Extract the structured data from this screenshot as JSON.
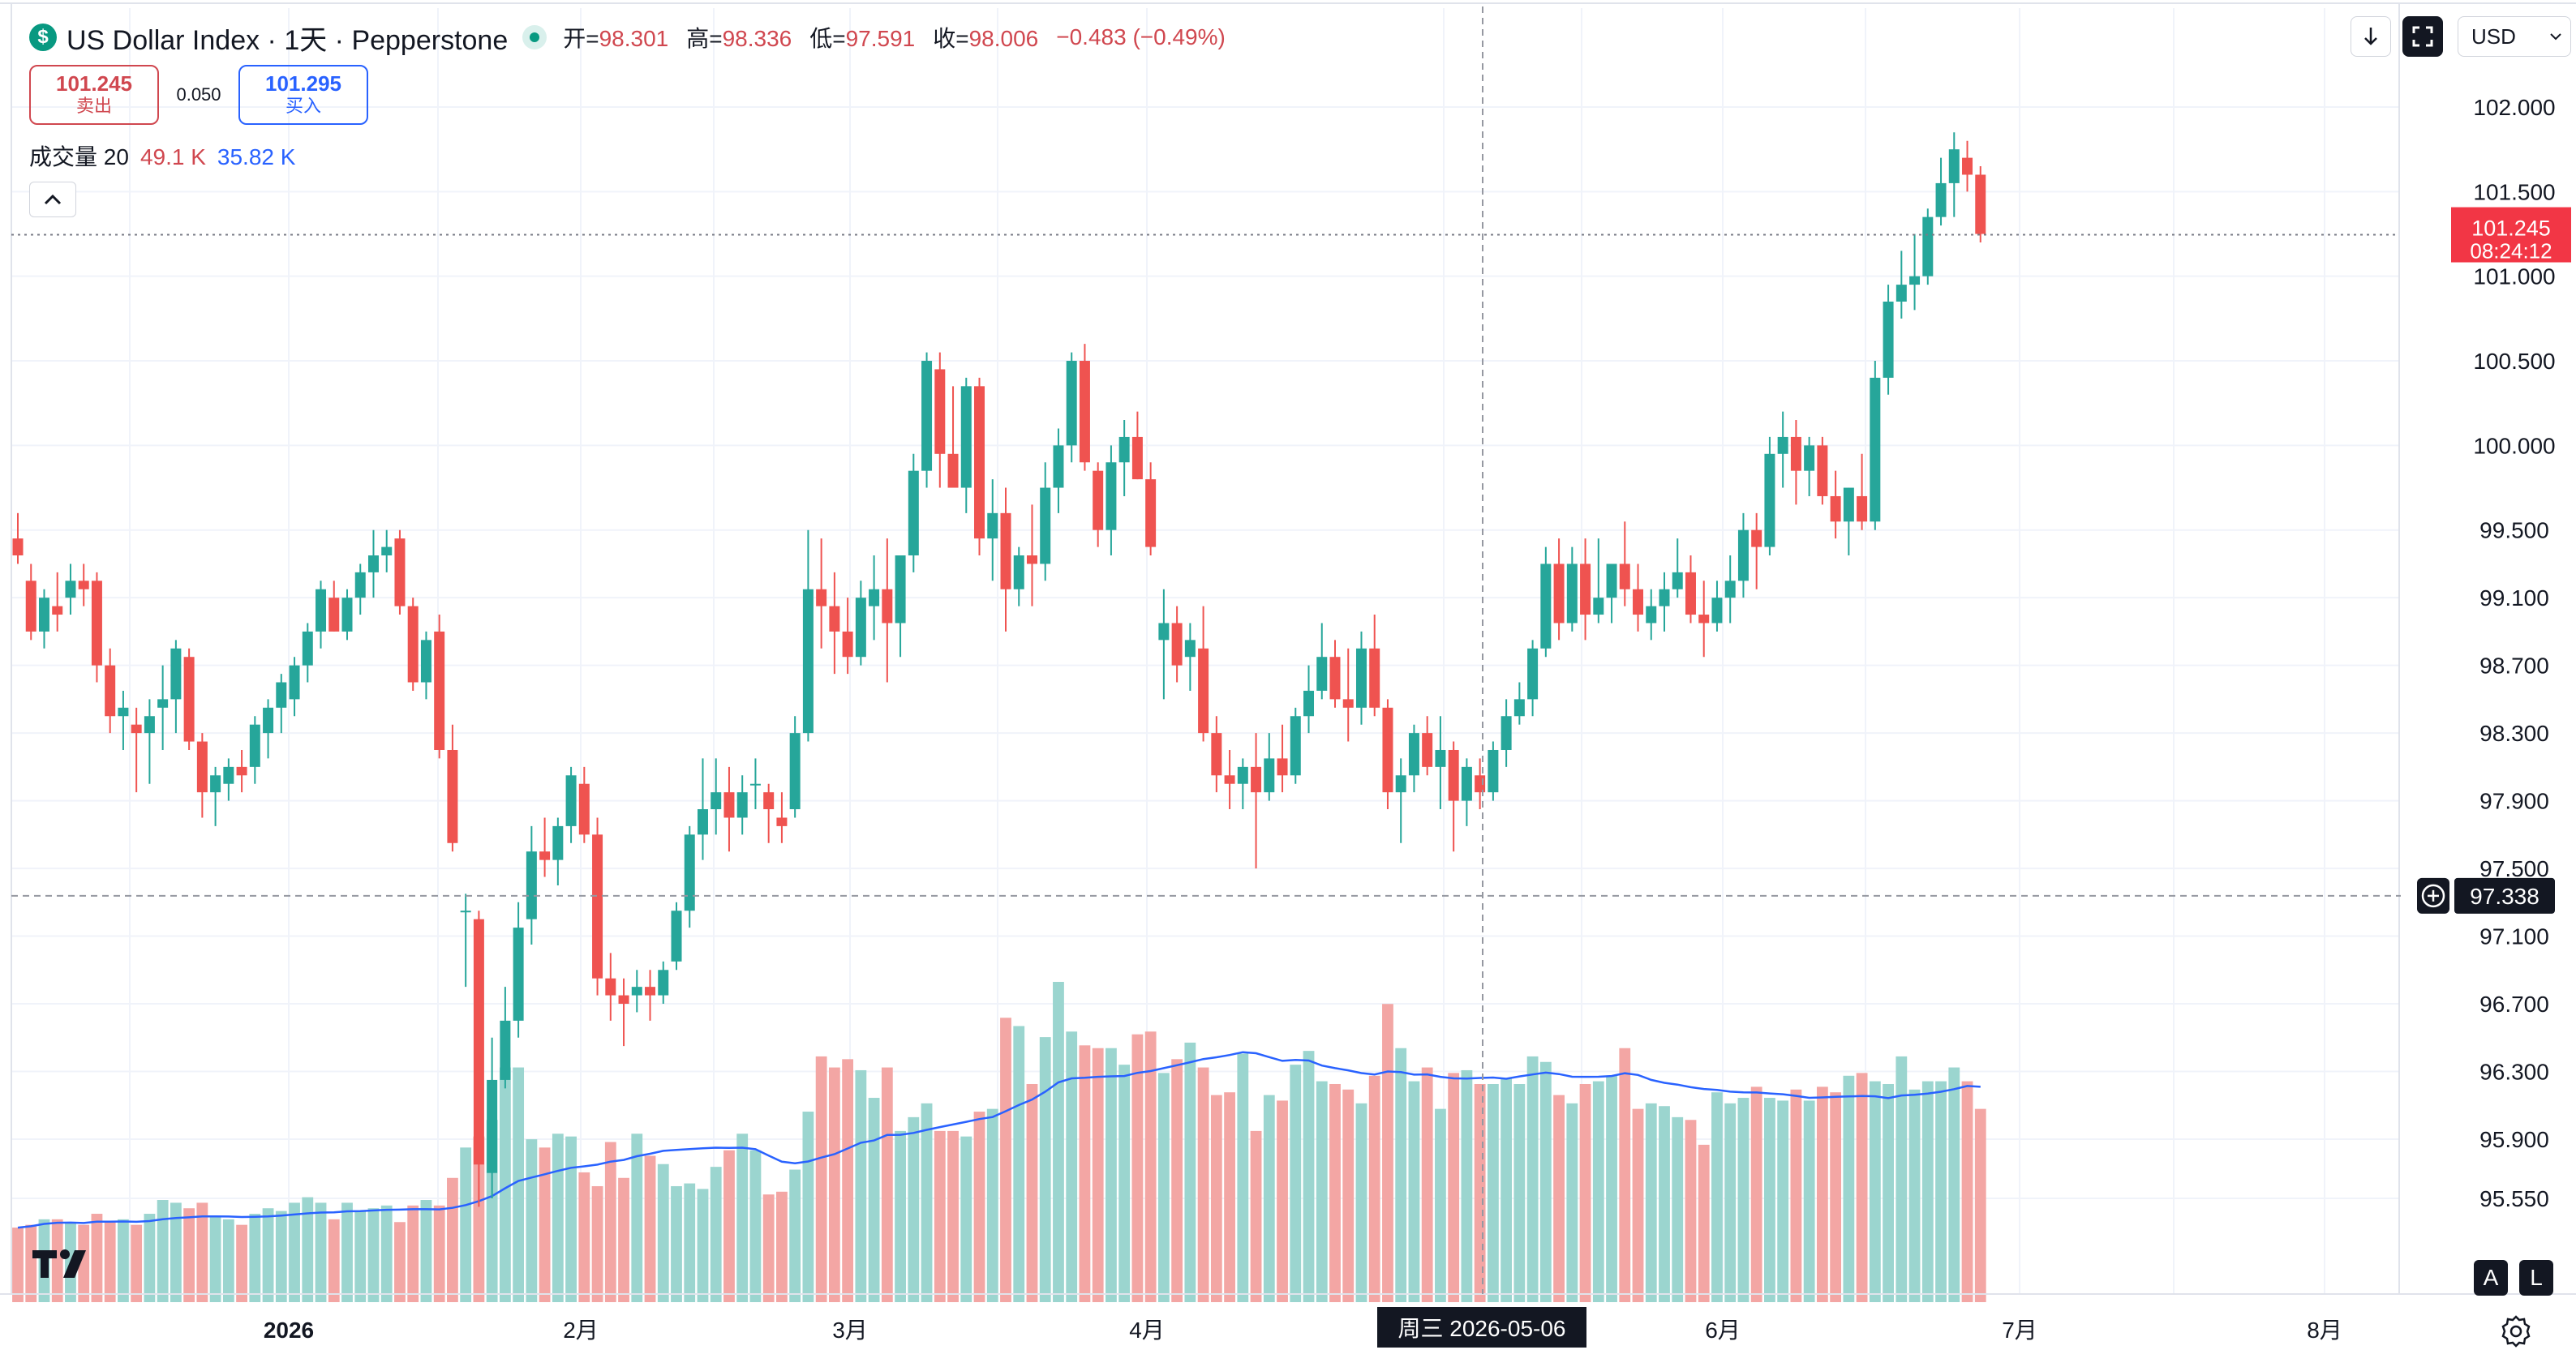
{
  "header": {
    "symbol_title": "US Dollar Index · 1天 · Pepperstone",
    "symbol_icon": "dollar-sign-icon",
    "status_dot": "market-status-dot-icon",
    "ohlc": {
      "open_label": "开=",
      "open": "98.301",
      "high_label": "高=",
      "high": "98.336",
      "low_label": "低=",
      "low": "97.591",
      "close_label": "收=",
      "close": "98.006",
      "change": "−0.483 (−0.49%)"
    }
  },
  "trade": {
    "sell_price": "101.245",
    "sell_label": "卖出",
    "spread": "0.050",
    "buy_price": "101.295",
    "buy_label": "买入"
  },
  "volume_legend": {
    "label": "成交量 20",
    "value1": "49.1 K",
    "value2": "35.82 K"
  },
  "toolbar": {
    "download_icon": "arrow-down-icon",
    "fullscreen_icon": "fullscreen-icon",
    "currency": "USD"
  },
  "crosshair": {
    "price": "97.338",
    "date": "周三 2026-05-06"
  },
  "current_price": {
    "price": "101.245",
    "countdown": "08:24:12"
  },
  "bottom_buttons": {
    "auto": "A",
    "log": "L"
  },
  "colors": {
    "up": "#26a69a",
    "down": "#ef5350",
    "up_vol": "#9bd5cf",
    "down_vol": "#f3a6a4",
    "ma": "#2962ff",
    "text": "#131722"
  },
  "chart_data": {
    "type": "candlestick",
    "symbol": "US Dollar Index",
    "interval": "1天",
    "y_axis_labels": [
      "102.000",
      "101.500",
      "101.000",
      "100.500",
      "100.000",
      "99.500",
      "99.100",
      "98.700",
      "98.300",
      "97.900",
      "97.500",
      "97.100",
      "96.700",
      "96.300",
      "95.900",
      "95.550"
    ],
    "ylim": [
      95.2,
      102.2
    ],
    "x_axis_labels": [
      "2026",
      "2月",
      "3月",
      "4月",
      "6月",
      "7月",
      "8月"
    ],
    "series": [
      {
        "name": "price",
        "ohlc": [
          [
            99.45,
            99.6,
            99.3,
            99.35
          ],
          [
            99.2,
            99.3,
            98.85,
            98.9
          ],
          [
            98.9,
            99.15,
            98.8,
            99.1
          ],
          [
            99.05,
            99.25,
            98.9,
            99.0
          ],
          [
            99.1,
            99.3,
            99.0,
            99.2
          ],
          [
            99.2,
            99.3,
            99.05,
            99.15
          ],
          [
            99.2,
            99.25,
            98.6,
            98.7
          ],
          [
            98.7,
            98.8,
            98.3,
            98.4
          ],
          [
            98.4,
            98.55,
            98.2,
            98.45
          ],
          [
            98.35,
            98.45,
            97.95,
            98.3
          ],
          [
            98.3,
            98.5,
            98.0,
            98.4
          ],
          [
            98.45,
            98.7,
            98.2,
            98.5
          ],
          [
            98.5,
            98.85,
            98.3,
            98.8
          ],
          [
            98.75,
            98.8,
            98.2,
            98.25
          ],
          [
            98.25,
            98.3,
            97.8,
            97.95
          ],
          [
            97.95,
            98.1,
            97.75,
            98.05
          ],
          [
            98.0,
            98.15,
            97.9,
            98.1
          ],
          [
            98.1,
            98.2,
            97.95,
            98.05
          ],
          [
            98.1,
            98.4,
            98.0,
            98.35
          ],
          [
            98.3,
            98.5,
            98.15,
            98.45
          ],
          [
            98.45,
            98.65,
            98.3,
            98.6
          ],
          [
            98.5,
            98.75,
            98.4,
            98.7
          ],
          [
            98.7,
            98.95,
            98.6,
            98.9
          ],
          [
            98.9,
            99.2,
            98.8,
            99.15
          ],
          [
            99.1,
            99.2,
            98.9,
            98.9
          ],
          [
            98.9,
            99.15,
            98.85,
            99.1
          ],
          [
            99.1,
            99.3,
            99.0,
            99.25
          ],
          [
            99.25,
            99.5,
            99.1,
            99.35
          ],
          [
            99.35,
            99.5,
            99.25,
            99.4
          ],
          [
            99.45,
            99.5,
            99.0,
            99.05
          ],
          [
            99.05,
            99.1,
            98.55,
            98.6
          ],
          [
            98.6,
            98.9,
            98.5,
            98.85
          ],
          [
            98.9,
            99.0,
            98.15,
            98.2
          ],
          [
            98.2,
            98.35,
            97.6,
            97.65
          ],
          [
            97.25,
            97.35,
            96.8,
            97.25
          ],
          [
            97.2,
            97.25,
            95.5,
            95.75
          ],
          [
            95.7,
            96.5,
            95.55,
            96.25
          ],
          [
            96.25,
            96.8,
            96.2,
            96.6
          ],
          [
            96.6,
            97.3,
            96.5,
            97.15
          ],
          [
            97.2,
            97.75,
            97.05,
            97.6
          ],
          [
            97.6,
            97.8,
            97.45,
            97.55
          ],
          [
            97.55,
            97.8,
            97.4,
            97.75
          ],
          [
            97.75,
            98.1,
            97.65,
            98.05
          ],
          [
            98.0,
            98.1,
            97.65,
            97.7
          ],
          [
            97.7,
            97.8,
            96.75,
            96.85
          ],
          [
            96.85,
            97.0,
            96.6,
            96.75
          ],
          [
            96.75,
            96.85,
            96.45,
            96.7
          ],
          [
            96.75,
            96.9,
            96.65,
            96.8
          ],
          [
            96.8,
            96.9,
            96.6,
            96.75
          ],
          [
            96.75,
            96.95,
            96.7,
            96.9
          ],
          [
            96.95,
            97.3,
            96.9,
            97.25
          ],
          [
            97.25,
            97.75,
            97.15,
            97.7
          ],
          [
            97.7,
            98.15,
            97.55,
            97.85
          ],
          [
            97.85,
            98.15,
            97.7,
            97.95
          ],
          [
            97.95,
            98.1,
            97.6,
            97.8
          ],
          [
            97.8,
            98.05,
            97.7,
            97.95
          ],
          [
            98.0,
            98.15,
            97.85,
            98.0
          ],
          [
            97.95,
            98.0,
            97.65,
            97.85
          ],
          [
            97.8,
            97.95,
            97.65,
            97.75
          ],
          [
            97.85,
            98.4,
            97.8,
            98.3
          ],
          [
            98.3,
            99.5,
            98.25,
            99.15
          ],
          [
            99.15,
            99.45,
            98.8,
            99.05
          ],
          [
            99.05,
            99.25,
            98.65,
            98.9
          ],
          [
            98.9,
            99.1,
            98.65,
            98.75
          ],
          [
            98.75,
            99.2,
            98.7,
            99.1
          ],
          [
            99.05,
            99.35,
            98.85,
            99.15
          ],
          [
            99.15,
            99.45,
            98.6,
            98.95
          ],
          [
            98.95,
            99.35,
            98.75,
            99.35
          ],
          [
            99.35,
            99.95,
            99.25,
            99.85
          ],
          [
            99.85,
            100.55,
            99.75,
            100.5
          ],
          [
            100.45,
            100.55,
            99.75,
            99.95
          ],
          [
            99.95,
            100.35,
            99.75,
            99.75
          ],
          [
            99.75,
            100.4,
            99.6,
            100.35
          ],
          [
            100.35,
            100.4,
            99.35,
            99.45
          ],
          [
            99.45,
            99.8,
            99.2,
            99.6
          ],
          [
            99.6,
            99.75,
            98.9,
            99.15
          ],
          [
            99.15,
            99.4,
            99.05,
            99.35
          ],
          [
            99.35,
            99.65,
            99.05,
            99.3
          ],
          [
            99.3,
            99.9,
            99.2,
            99.75
          ],
          [
            99.75,
            100.1,
            99.6,
            100.0
          ],
          [
            100.0,
            100.55,
            99.9,
            100.5
          ],
          [
            100.5,
            100.6,
            99.85,
            99.9
          ],
          [
            99.85,
            99.9,
            99.4,
            99.5
          ],
          [
            99.5,
            100.0,
            99.35,
            99.9
          ],
          [
            99.9,
            100.15,
            99.7,
            100.05
          ],
          [
            100.05,
            100.2,
            99.8,
            99.8
          ],
          [
            99.8,
            99.9,
            99.35,
            99.4
          ],
          [
            98.85,
            99.15,
            98.5,
            98.95
          ],
          [
            98.95,
            99.05,
            98.6,
            98.7
          ],
          [
            98.75,
            98.95,
            98.55,
            98.85
          ],
          [
            98.8,
            99.05,
            98.25,
            98.3
          ],
          [
            98.3,
            98.4,
            97.95,
            98.05
          ],
          [
            98.05,
            98.2,
            97.85,
            98.0
          ],
          [
            98.0,
            98.15,
            97.85,
            98.1
          ],
          [
            98.1,
            98.3,
            97.5,
            97.95
          ],
          [
            97.95,
            98.3,
            97.9,
            98.15
          ],
          [
            98.15,
            98.35,
            97.95,
            98.05
          ],
          [
            98.05,
            98.45,
            98.0,
            98.4
          ],
          [
            98.4,
            98.7,
            98.3,
            98.55
          ],
          [
            98.55,
            98.95,
            98.5,
            98.75
          ],
          [
            98.75,
            98.85,
            98.45,
            98.5
          ],
          [
            98.5,
            98.8,
            98.25,
            98.45
          ],
          [
            98.45,
            98.9,
            98.35,
            98.8
          ],
          [
            98.8,
            99.0,
            98.4,
            98.45
          ],
          [
            98.45,
            98.5,
            97.85,
            97.95
          ],
          [
            97.95,
            98.15,
            97.65,
            98.05
          ],
          [
            98.05,
            98.35,
            97.95,
            98.3
          ],
          [
            98.3,
            98.4,
            98.05,
            98.1
          ],
          [
            98.1,
            98.4,
            97.85,
            98.2
          ],
          [
            98.2,
            98.25,
            97.6,
            97.9
          ],
          [
            97.9,
            98.15,
            97.75,
            98.1
          ],
          [
            98.05,
            98.15,
            97.85,
            97.95
          ],
          [
            97.95,
            98.25,
            97.9,
            98.2
          ],
          [
            98.2,
            98.5,
            98.1,
            98.4
          ],
          [
            98.4,
            98.6,
            98.35,
            98.5
          ],
          [
            98.5,
            98.85,
            98.4,
            98.8
          ],
          [
            98.8,
            99.4,
            98.75,
            99.3
          ],
          [
            99.3,
            99.45,
            98.85,
            98.95
          ],
          [
            98.95,
            99.4,
            98.9,
            99.3
          ],
          [
            99.3,
            99.45,
            98.85,
            99.0
          ],
          [
            99.0,
            99.45,
            98.95,
            99.1
          ],
          [
            99.1,
            99.3,
            98.95,
            99.3
          ],
          [
            99.3,
            99.55,
            99.05,
            99.15
          ],
          [
            99.15,
            99.3,
            98.9,
            99.0
          ],
          [
            98.95,
            99.15,
            98.85,
            99.05
          ],
          [
            99.05,
            99.25,
            98.9,
            99.15
          ],
          [
            99.15,
            99.45,
            99.1,
            99.25
          ],
          [
            99.25,
            99.35,
            98.95,
            99.0
          ],
          [
            99.0,
            99.2,
            98.75,
            98.95
          ],
          [
            98.95,
            99.2,
            98.9,
            99.1
          ],
          [
            99.1,
            99.35,
            98.95,
            99.2
          ],
          [
            99.2,
            99.6,
            99.1,
            99.5
          ],
          [
            99.5,
            99.6,
            99.15,
            99.4
          ],
          [
            99.4,
            100.05,
            99.35,
            99.95
          ],
          [
            99.95,
            100.2,
            99.75,
            100.05
          ],
          [
            100.05,
            100.15,
            99.65,
            99.85
          ],
          [
            99.85,
            100.05,
            99.7,
            100.0
          ],
          [
            100.0,
            100.05,
            99.65,
            99.7
          ],
          [
            99.7,
            99.85,
            99.45,
            99.55
          ],
          [
            99.55,
            99.75,
            99.35,
            99.75
          ],
          [
            99.7,
            99.95,
            99.5,
            99.55
          ],
          [
            99.55,
            100.5,
            99.5,
            100.4
          ],
          [
            100.4,
            100.95,
            100.3,
            100.85
          ],
          [
            100.85,
            101.15,
            100.75,
            100.95
          ],
          [
            100.95,
            101.25,
            100.8,
            101.0
          ],
          [
            101.0,
            101.4,
            100.95,
            101.35
          ],
          [
            101.35,
            101.7,
            101.3,
            101.55
          ],
          [
            101.55,
            101.85,
            101.35,
            101.75
          ],
          [
            101.7,
            101.8,
            101.5,
            101.6
          ],
          [
            101.6,
            101.65,
            101.2,
            101.25
          ]
        ]
      },
      {
        "name": "成交量",
        "values": [
          27,
          28,
          30,
          30,
          29,
          28,
          32,
          29,
          30,
          28,
          32,
          37,
          36,
          34,
          36,
          31,
          30,
          28,
          32,
          34,
          33,
          36,
          38,
          36,
          30,
          36,
          33,
          34,
          35,
          29,
          35,
          37,
          35,
          45,
          56,
          60,
          66,
          85,
          85,
          59,
          56,
          61,
          60,
          47,
          42,
          58,
          45,
          61,
          53,
          50,
          42,
          43,
          41,
          49,
          55,
          61,
          55,
          39,
          40,
          48,
          69,
          89,
          85,
          88,
          84,
          74,
          85,
          62,
          67,
          72,
          62,
          62,
          60,
          69,
          70,
          103,
          100,
          79,
          96,
          116,
          98,
          93,
          92,
          92,
          86,
          97,
          98,
          83,
          88,
          94,
          85,
          75,
          76,
          90,
          62,
          75,
          73,
          86,
          91,
          80,
          79,
          77,
          72,
          82,
          108,
          92,
          80,
          85,
          70,
          83,
          84,
          79,
          79,
          81,
          79,
          89,
          87,
          75,
          72,
          79,
          80,
          82,
          92,
          70,
          72,
          71,
          67,
          66,
          57,
          76,
          72,
          74,
          78,
          74,
          73,
          77,
          73,
          78,
          76,
          82,
          83,
          80,
          79,
          89,
          77,
          80,
          80,
          85,
          80,
          70
        ]
      }
    ]
  }
}
